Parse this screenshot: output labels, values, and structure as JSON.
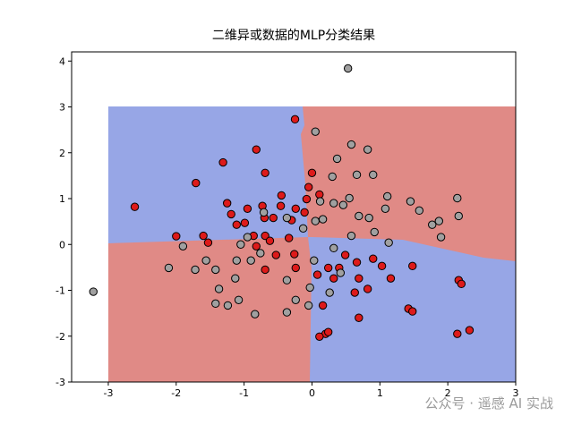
{
  "chart_data": {
    "type": "scatter",
    "title": "二维异或数据的MLP分类结果",
    "xlim": [
      -3.54,
      3.0
    ],
    "ylim": [
      -3,
      4.2
    ],
    "xticks": [
      -3,
      -2,
      -1,
      0,
      1,
      2,
      3
    ],
    "yticks": [
      -3,
      -2,
      -1,
      0,
      1,
      2,
      3,
      4
    ],
    "series": [
      {
        "color": "#dd1a1a",
        "x": [
          -0.25,
          0.0,
          0.11,
          -0.05,
          -0.08,
          -0.45,
          -0.73,
          -0.57,
          -0.46,
          -0.24,
          -0.3,
          -0.7,
          -0.95,
          -1.19,
          -1.25,
          -1.31,
          -1.71,
          -2.61,
          -2.0,
          -1.6,
          -1.53,
          -1.11,
          -0.99,
          -0.86,
          -0.69,
          -0.82,
          -0.62,
          -0.34,
          -0.26,
          -0.69,
          -0.53,
          -0.24,
          0.08,
          0.24,
          0.32,
          0.49,
          0.66,
          0.9,
          1.03,
          0.69,
          1.16,
          0.63,
          0.82,
          0.16,
          0.2,
          0.11,
          0.24,
          0.69,
          1.42,
          1.48,
          2.14,
          2.32,
          2.16,
          2.2,
          -0.82,
          -0.69,
          1.48,
          0.4,
          -0.11
        ],
        "values": [
          2.73,
          1.56,
          1.09,
          1.25,
          0.99,
          1.07,
          0.84,
          0.58,
          0.84,
          0.78,
          0.53,
          0.58,
          0.78,
          0.66,
          0.9,
          1.79,
          1.34,
          0.82,
          0.18,
          0.19,
          0.04,
          0.43,
          0.47,
          0.19,
          0.19,
          -0.04,
          0.08,
          0.14,
          -0.21,
          -0.55,
          -0.23,
          -0.51,
          -0.66,
          -0.51,
          -0.74,
          -0.23,
          -0.39,
          -0.31,
          -0.47,
          -0.74,
          -0.74,
          -1.05,
          -0.97,
          -1.33,
          -1.95,
          -2.01,
          -1.91,
          -1.6,
          -1.4,
          -1.46,
          -1.95,
          -1.87,
          -0.78,
          -0.86,
          2.07,
          1.56,
          -0.47,
          -0.51,
          0.7
        ]
      },
      {
        "color": "#a0a0a0",
        "x": [
          0.53,
          0.05,
          0.58,
          0.37,
          0.82,
          0.3,
          0.66,
          0.9,
          0.12,
          0.32,
          0.46,
          0.55,
          0.69,
          0.84,
          1.08,
          1.11,
          1.45,
          1.58,
          1.77,
          1.87,
          1.9,
          2.14,
          2.16,
          1.13,
          0.92,
          0.58,
          0.32,
          0.05,
          0.16,
          -0.13,
          -0.37,
          -0.71,
          -0.95,
          -1.05,
          -0.76,
          -0.9,
          -1.11,
          -1.13,
          -1.42,
          -1.56,
          -2.11,
          -1.9,
          -1.72,
          -1.37,
          -1.42,
          -1.24,
          -1.08,
          -0.84,
          -0.37,
          -0.24,
          -0.37,
          -0.03,
          -0.05,
          0.03,
          0.42,
          0.26,
          -3.22
        ],
        "values": [
          3.84,
          2.46,
          2.18,
          1.87,
          2.07,
          1.48,
          1.52,
          1.52,
          0.94,
          0.9,
          0.86,
          1.01,
          0.62,
          0.58,
          0.78,
          1.05,
          0.94,
          0.74,
          0.43,
          0.51,
          0.16,
          1.01,
          0.62,
          0.04,
          0.27,
          0.19,
          -0.08,
          0.51,
          0.55,
          0.35,
          0.58,
          0.7,
          0.16,
          0.0,
          -0.19,
          -0.35,
          -0.35,
          -0.74,
          -0.55,
          -0.35,
          -0.51,
          -0.04,
          -0.55,
          -0.97,
          -1.29,
          -1.33,
          -1.21,
          -1.52,
          -1.48,
          -1.21,
          -0.78,
          -0.94,
          -1.33,
          -0.35,
          -0.62,
          -1.05,
          -1.03
        ]
      }
    ],
    "watermark": "公众号 · 遥感 AI 实战"
  }
}
